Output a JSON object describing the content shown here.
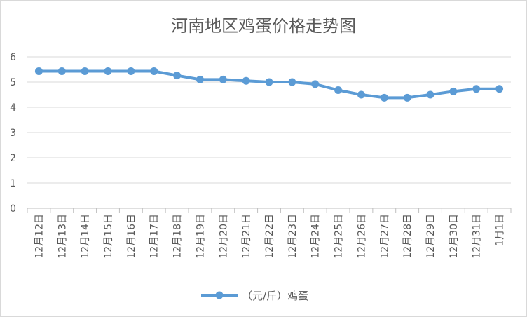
{
  "chart_data": {
    "type": "line",
    "title": "河南地区鸡蛋价格走势图",
    "categories": [
      "12月12日",
      "12月13日",
      "12月14日",
      "12月15日",
      "12月16日",
      "12月17日",
      "12月18日",
      "12月19日",
      "12月20日",
      "12月21日",
      "12月22日",
      "12月23日",
      "12月24日",
      "12月25日",
      "12月26日",
      "12月27日",
      "12月28日",
      "12月29日",
      "12月30日",
      "12月31日",
      "1月1日"
    ],
    "series": [
      {
        "name": "（元/斤）鸡蛋",
        "values": [
          5.43,
          5.43,
          5.43,
          5.43,
          5.43,
          5.43,
          5.26,
          5.1,
          5.1,
          5.05,
          5.0,
          5.0,
          4.92,
          4.68,
          4.5,
          4.38,
          4.38,
          4.5,
          4.63,
          4.73,
          4.73
        ],
        "color": "#5b9bd5"
      }
    ],
    "ylim": [
      0,
      6
    ],
    "yticks": [
      0,
      1,
      2,
      3,
      4,
      5,
      6
    ],
    "grid": true,
    "legend_position": "bottom"
  }
}
